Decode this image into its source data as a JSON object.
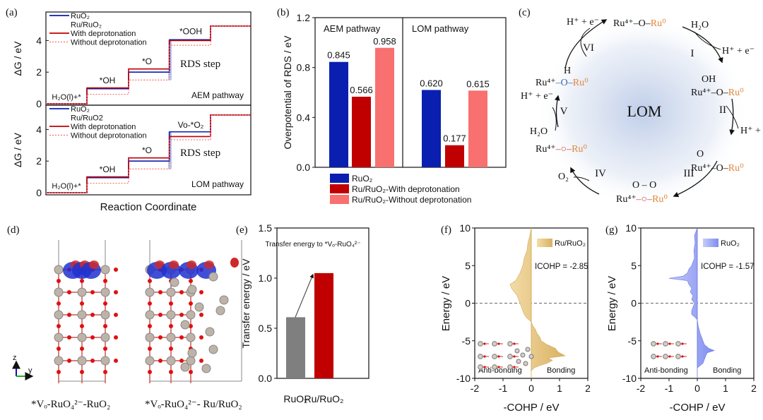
{
  "panel_labels": {
    "a": "(a)",
    "b": "(b)",
    "c": "(c)",
    "d": "(d)",
    "e": "(e)",
    "f": "(f)",
    "g": "(g)"
  },
  "colors": {
    "ruo2": "#0a1fb0",
    "with_deprot": "#c00000",
    "without_deprot": "#f87070",
    "gray": "#7f7f7f",
    "gold": "#e6c27a",
    "lavender": "#8a94f0",
    "rds_band": "#a9b8e8"
  },
  "chart_data": [
    {
      "id": "a",
      "type": "line",
      "title": "",
      "xlabel": "Reaction Coordinate",
      "ylabel": "ΔG / eV",
      "yticks": [
        "0",
        "2",
        "4"
      ],
      "ylim": [
        0,
        5
      ],
      "legend": [
        "RuO₂",
        "Ru/RuO₂",
        "With deprotonation",
        "Without deprotonation"
      ],
      "legend_lom": [
        "RuO₂",
        "Ru/RuO2",
        "With deprotonation",
        "Without deprotonation"
      ],
      "subplots": [
        {
          "name": "AEM pathway",
          "pathway_label": "AEM pathway",
          "rds_label": "RDS step",
          "states": [
            "H₂O(l)+*",
            "*OH",
            "*O",
            "*OOH",
            ""
          ],
          "series": [
            {
              "name": "RuO₂",
              "style": "solid-blue",
              "values": [
                0,
                0.95,
                2.0,
                4.05,
                4.92
              ]
            },
            {
              "name": "With deprotonation",
              "style": "solid-red",
              "values": [
                0,
                1.0,
                2.2,
                4.0,
                4.92
              ]
            },
            {
              "name": "Without deprotonation",
              "style": "dotted-red",
              "values": [
                0,
                0.6,
                1.5,
                3.7,
                4.92
              ]
            }
          ]
        },
        {
          "name": "LOM pathway",
          "pathway_label": "LOM pathway",
          "rds_label": "RDS step",
          "states": [
            "H₂O(l)+*",
            "*OH",
            "*O",
            "Vo-*O₂",
            ""
          ],
          "series": [
            {
              "name": "RuO₂",
              "style": "solid-blue",
              "values": [
                0,
                0.95,
                2.0,
                3.85,
                4.92
              ]
            },
            {
              "name": "With deprotonation",
              "style": "solid-red",
              "values": [
                0,
                1.0,
                2.2,
                3.55,
                4.92
              ]
            },
            {
              "name": "Without deprotonation",
              "style": "dotted-red",
              "values": [
                0,
                0.6,
                1.5,
                3.35,
                4.92
              ]
            }
          ]
        }
      ]
    },
    {
      "id": "b",
      "type": "bar",
      "ylabel": "Overpotential of RDS / eV",
      "ylim": [
        0,
        1.2
      ],
      "yticks": [
        "0.0",
        "0.4",
        "0.8",
        "1.2"
      ],
      "categories": [
        "AEM pathway",
        "LOM pathway"
      ],
      "series": [
        {
          "name": "RuO₂",
          "values": [
            0.845,
            0.62
          ],
          "labels": [
            "0.845",
            "0.620"
          ]
        },
        {
          "name": "Ru/RuO₂-With deprotonation",
          "values": [
            0.566,
            0.177
          ],
          "labels": [
            "0.566",
            "0.177"
          ]
        },
        {
          "name": "Ru/RuO₂-Without deprotonation",
          "values": [
            0.958,
            0.615
          ],
          "labels": [
            "0.958",
            "0.615"
          ]
        }
      ],
      "legend_placement": "bottom"
    },
    {
      "id": "e",
      "type": "bar",
      "ylabel": "Transfer energy / eV",
      "annotation": "Transfer energy to *Vₒ-RuO₄²⁻",
      "ylim": [
        0,
        1.5
      ],
      "yticks": [
        "0.0",
        "0.5",
        "1.0",
        "1.5"
      ],
      "categories": [
        "RuO₂",
        "Ru/RuO₂"
      ],
      "values": [
        0.61,
        1.05
      ]
    },
    {
      "id": "f",
      "type": "area",
      "xlabel": "-COHP / eV",
      "ylabel": "Energy / eV",
      "xlim": [
        -2,
        2
      ],
      "ylim": [
        -10,
        10
      ],
      "xticks": [
        "-2",
        "-1",
        "0",
        "1",
        "2"
      ],
      "yticks": [
        "-10",
        "-5",
        "0",
        "5",
        "10"
      ],
      "legend": "Ru/RuO₂",
      "icohp": "ICOHP = -2.85",
      "left_label": "Anti-bonding",
      "right_label": "Bonding",
      "energy": [
        10,
        9,
        8,
        7,
        6,
        5,
        4,
        3,
        2.5,
        2,
        1.5,
        1,
        0.5,
        0,
        -0.5,
        -1,
        -1.5,
        -2,
        -2.3,
        -2.5,
        -3,
        -3.5,
        -4,
        -4.5,
        -5,
        -5.5,
        -6,
        -6.5,
        -7,
        -7.3,
        -7.6,
        -8,
        -8.3,
        -8.6,
        -9
      ],
      "values": [
        0,
        -0.05,
        -0.12,
        -0.15,
        -0.25,
        -0.3,
        -0.4,
        -0.55,
        -0.75,
        -0.7,
        -0.6,
        -0.5,
        -0.45,
        -0.4,
        -0.35,
        -0.3,
        -0.25,
        -0.15,
        -0.05,
        0,
        0.05,
        0.15,
        0.2,
        0.3,
        0.35,
        0.55,
        0.85,
        0.95,
        1.2,
        0.6,
        0.75,
        0.55,
        0.3,
        0.1,
        0
      ]
    },
    {
      "id": "g",
      "type": "area",
      "xlabel": "-COHP / eV",
      "ylabel": "Energy / eV",
      "xlim": [
        -2,
        2
      ],
      "ylim": [
        -10,
        10
      ],
      "xticks": [
        "-2",
        "-1",
        "0",
        "1",
        "2"
      ],
      "yticks": [
        "-10",
        "-5",
        "0",
        "5",
        "10"
      ],
      "legend": "RuO₂",
      "icohp": "ICOHP = -1.57",
      "left_label": "Anti-bonding",
      "right_label": "Bonding",
      "energy": [
        10,
        9,
        8,
        7,
        6,
        5,
        4.5,
        4,
        3.6,
        3.3,
        3,
        2.5,
        2,
        1.5,
        1,
        0.5,
        0,
        -0.5,
        -1,
        -1.5,
        -1.8,
        -2.2,
        -3,
        -4,
        -4.5,
        -5,
        -5.5,
        -6,
        -6.3,
        -6.6,
        -7,
        -7.5,
        -8,
        -8.3,
        -8.6
      ],
      "values": [
        0,
        -0.1,
        -0.08,
        -0.12,
        -0.1,
        -0.2,
        -0.3,
        -0.35,
        -0.5,
        -1.0,
        -0.35,
        -0.3,
        -0.2,
        -0.25,
        -0.15,
        -0.2,
        -0.1,
        -0.15,
        -0.2,
        -0.2,
        -0.1,
        0,
        0.03,
        0.1,
        0.15,
        0.2,
        0.25,
        0.4,
        0.6,
        0.35,
        0.3,
        0.25,
        0.2,
        0.1,
        0
      ]
    }
  ],
  "panel_c": {
    "center_label": "LOM",
    "steps": [
      "I",
      "II",
      "III",
      "IV",
      "V",
      "VI"
    ],
    "species": {
      "top": [
        "Ru⁴⁺",
        "–O–",
        "Ru⁰"
      ],
      "right_oh_top": "OH",
      "right_oh": [
        "Ru⁴⁺",
        "–O–",
        "Ru⁰"
      ],
      "right_o_top": "O",
      "right_o": [
        "Ru⁴⁺",
        "–O–",
        "Ru⁰"
      ],
      "bottom_top": "O – O",
      "bottom": [
        "Ru⁴⁺",
        "–○–",
        "Ru⁰"
      ],
      "left_vac": [
        "Ru⁴⁺",
        "–○–",
        "Ru⁰"
      ],
      "left_h_top": "H",
      "left_h": [
        "Ru⁴⁺",
        "–O–",
        "Ru⁰"
      ]
    },
    "reagents": {
      "h2o_1": "H₂O",
      "h_e_1": "H⁺ + e⁻",
      "h_e_2": "H⁺ +",
      "o2": "O₂",
      "h2o_2": "H₂O",
      "h_e_3": "H⁺ + e⁻",
      "h_e_4": "H⁺ + e⁻"
    }
  },
  "panel_d": {
    "axis_z": "z",
    "axis_y": "y",
    "caption_left": "*Vₒ-RuO₄²⁻-RuO₂",
    "caption_right": "*Vₒ-RuO₄²⁻- Ru/RuO₂"
  }
}
